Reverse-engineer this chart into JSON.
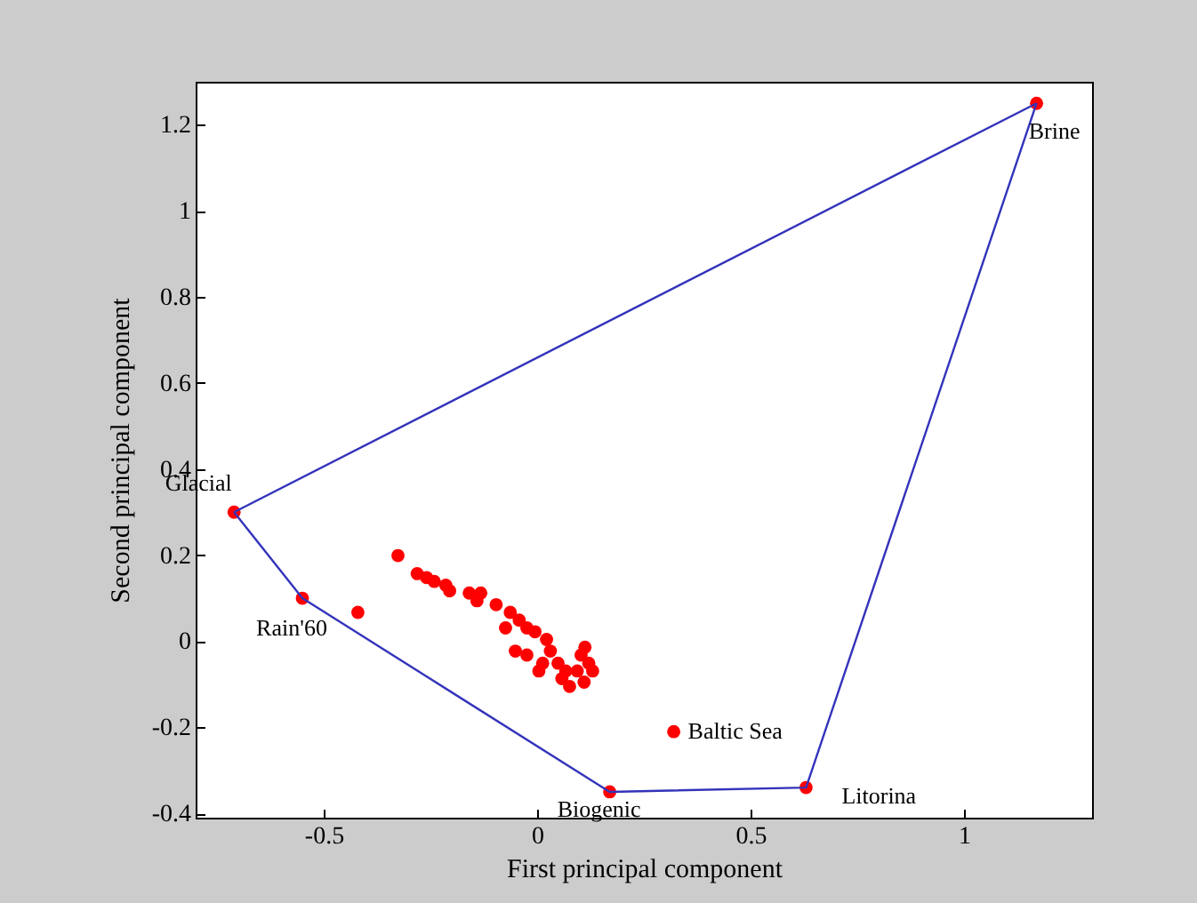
{
  "chart_data": {
    "type": "scatter",
    "xlabel": "First principal component",
    "ylabel": "Second principal component",
    "xlim": [
      -0.8,
      1.3
    ],
    "ylim": [
      -0.41,
      1.3
    ],
    "xticks": [
      -0.5,
      0,
      0.5,
      1
    ],
    "yticks": [
      -0.4,
      -0.2,
      0,
      0.2,
      0.4,
      0.6,
      0.8,
      1,
      1.2
    ],
    "marker": "circle",
    "line_style": "solid",
    "series": [
      {
        "type": "line",
        "marker": "none",
        "color": "#3333bb",
        "x": [
          -0.71,
          -0.55,
          0.17,
          0.63,
          1.17
        ],
        "values": [
          0.3,
          0.1,
          -0.35,
          -0.34,
          1.25
        ]
      },
      {
        "type": "line",
        "marker": "none",
        "color": "#3333bb",
        "x": [
          -0.71,
          1.17
        ],
        "values": [
          0.3,
          1.25
        ]
      },
      {
        "type": "scatter",
        "color": "#ff0000",
        "x": [
          -0.71,
          -0.55,
          0.17,
          0.63,
          1.17,
          0.32,
          -0.42,
          -0.326,
          -0.281,
          -0.259,
          -0.241,
          -0.214,
          -0.205,
          -0.159,
          -0.132,
          -0.141,
          -0.096,
          -0.063,
          -0.042,
          -0.024,
          -0.005,
          -0.074,
          0.022,
          -0.051,
          -0.024,
          0.013,
          0.004,
          0.049,
          0.067,
          0.11,
          0.103,
          0.121,
          0.13,
          0.076,
          0.058,
          0.031,
          0.094,
          0.112
        ],
        "values": [
          0.3,
          0.1,
          -0.35,
          -0.34,
          1.25,
          -0.21,
          0.067,
          0.199,
          0.157,
          0.148,
          0.139,
          0.13,
          0.117,
          0.112,
          0.112,
          0.094,
          0.085,
          0.067,
          0.049,
          0.031,
          0.022,
          0.031,
          0.004,
          -0.023,
          -0.032,
          -0.051,
          -0.069,
          -0.051,
          -0.069,
          -0.095,
          -0.032,
          -0.051,
          -0.069,
          -0.105,
          -0.087,
          -0.023,
          -0.069,
          -0.014
        ]
      }
    ],
    "annotations": [
      {
        "text": "Glacial",
        "x": -0.71,
        "y": 0.3
      },
      {
        "text": "Rain'60",
        "x": -0.55,
        "y": 0.1
      },
      {
        "text": "Biogenic",
        "x": 0.17,
        "y": -0.35
      },
      {
        "text": "Litorina",
        "x": 0.63,
        "y": -0.34
      },
      {
        "text": "Brine",
        "x": 1.17,
        "y": 1.25
      },
      {
        "text": "Baltic Sea",
        "x": 0.32,
        "y": -0.21
      }
    ]
  }
}
